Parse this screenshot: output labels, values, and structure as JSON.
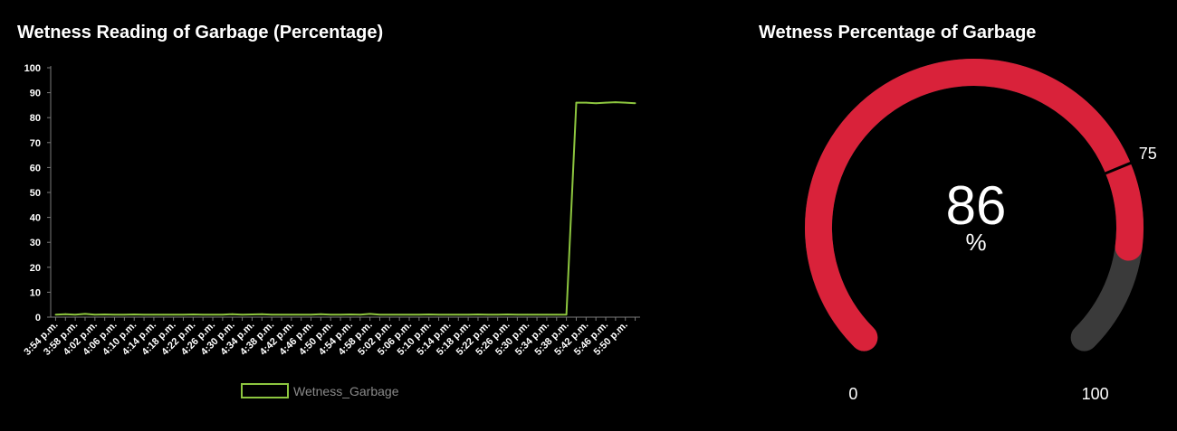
{
  "line_panel": {
    "title": "Wetness Reading of Garbage (Percentage)"
  },
  "gauge_panel": {
    "title": "Wetness Percentage of Garbage"
  },
  "colors": {
    "background": "#000000",
    "line": "#8dc63f",
    "gauge_fill": "#d9223a",
    "gauge_track": "#3a3a3a",
    "axis": "#7a7a7a",
    "text": "#ffffff",
    "legend_text": "#8a8a8a"
  },
  "chart_data": [
    {
      "type": "line",
      "title": "Wetness Reading of Garbage (Percentage)",
      "xlabel": "",
      "ylabel": "",
      "ylim": [
        0,
        100
      ],
      "y_ticks": [
        0,
        10,
        20,
        30,
        40,
        50,
        60,
        70,
        80,
        90,
        100
      ],
      "x_tick_labels": [
        "3:54 p.m.",
        "3:58 p.m.",
        "4:02 p.m.",
        "4:06 p.m.",
        "4:10 p.m.",
        "4:14 p.m.",
        "4:18 p.m.",
        "4:22 p.m.",
        "4:26 p.m.",
        "4:30 p.m.",
        "4:34 p.m.",
        "4:38 p.m.",
        "4:42 p.m.",
        "4:46 p.m.",
        "4:50 p.m.",
        "4:54 p.m.",
        "4:58 p.m.",
        "5:02 p.m.",
        "5:06 p.m.",
        "5:10 p.m.",
        "5:14 p.m.",
        "5:18 p.m.",
        "5:22 p.m.",
        "5:26 p.m.",
        "5:30 p.m.",
        "5:34 p.m.",
        "5:38 p.m.",
        "5:42 p.m.",
        "5:46 p.m.",
        "5:50 p.m."
      ],
      "grid": false,
      "legend_position": "bottom",
      "series": [
        {
          "name": "Wetness_Garbage",
          "x": [
            "3:54 p.m.",
            "3:56 p.m.",
            "3:58 p.m.",
            "4:00 p.m.",
            "4:02 p.m.",
            "4:04 p.m.",
            "4:06 p.m.",
            "4:08 p.m.",
            "4:10 p.m.",
            "4:12 p.m.",
            "4:14 p.m.",
            "4:16 p.m.",
            "4:18 p.m.",
            "4:20 p.m.",
            "4:22 p.m.",
            "4:24 p.m.",
            "4:26 p.m.",
            "4:28 p.m.",
            "4:30 p.m.",
            "4:32 p.m.",
            "4:34 p.m.",
            "4:36 p.m.",
            "4:38 p.m.",
            "4:40 p.m.",
            "4:42 p.m.",
            "4:44 p.m.",
            "4:46 p.m.",
            "4:48 p.m.",
            "4:50 p.m.",
            "4:52 p.m.",
            "4:54 p.m.",
            "4:56 p.m.",
            "4:58 p.m.",
            "5:00 p.m.",
            "5:02 p.m.",
            "5:04 p.m.",
            "5:06 p.m.",
            "5:08 p.m.",
            "5:10 p.m.",
            "5:12 p.m.",
            "5:14 p.m.",
            "5:16 p.m.",
            "5:18 p.m.",
            "5:20 p.m.",
            "5:22 p.m.",
            "5:24 p.m.",
            "5:26 p.m.",
            "5:28 p.m.",
            "5:30 p.m.",
            "5:32 p.m.",
            "5:34 p.m.",
            "5:36 p.m.",
            "5:38 p.m.",
            "5:40 p.m.",
            "5:42 p.m.",
            "5:44 p.m.",
            "5:46 p.m.",
            "5:48 p.m.",
            "5:50 p.m.",
            "5:52 p.m."
          ],
          "values": [
            1,
            1.2,
            1,
            1.3,
            1,
            1.1,
            1,
            1,
            1.1,
            1,
            1,
            1,
            1,
            1,
            1.1,
            1,
            1,
            1,
            1.2,
            1,
            1.1,
            1.2,
            1,
            1,
            1,
            1,
            1,
            1.2,
            1,
            1,
            1.1,
            1,
            1.3,
            1,
            1,
            1,
            1,
            1,
            1.1,
            1,
            1,
            1,
            1,
            1.1,
            1,
            1,
            1.1,
            1,
            1,
            1,
            1,
            1,
            1,
            86,
            86,
            85.8,
            86,
            86.2,
            86,
            85.8
          ]
        }
      ]
    },
    {
      "type": "gauge",
      "title": "Wetness Percentage of Garbage",
      "value": 86,
      "unit": "%",
      "min": 0,
      "max": 100,
      "threshold": 75,
      "labels": {
        "min": "0",
        "max": "100",
        "threshold": "75"
      }
    }
  ]
}
